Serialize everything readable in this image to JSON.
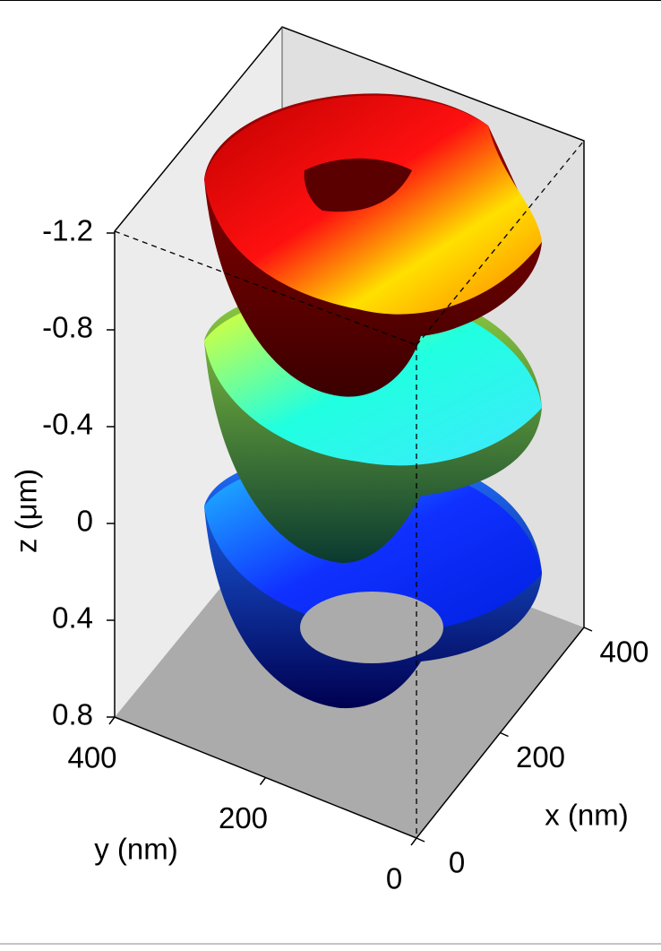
{
  "chart_data": {
    "type": "surface3d",
    "xlabel": "x (nm)",
    "ylabel": "y (nm)",
    "zlabel": "z (μm)",
    "xlim": [
      0,
      400
    ],
    "ylim": [
      0,
      400
    ],
    "zlim": [
      -1.2,
      0.8
    ],
    "zinverted": true,
    "xticks": [
      0,
      200,
      400
    ],
    "yticks": [
      0,
      200,
      400
    ],
    "zticks": [
      -1.2,
      -0.8,
      -0.4,
      0,
      0.4,
      0.8
    ]
  }
}
